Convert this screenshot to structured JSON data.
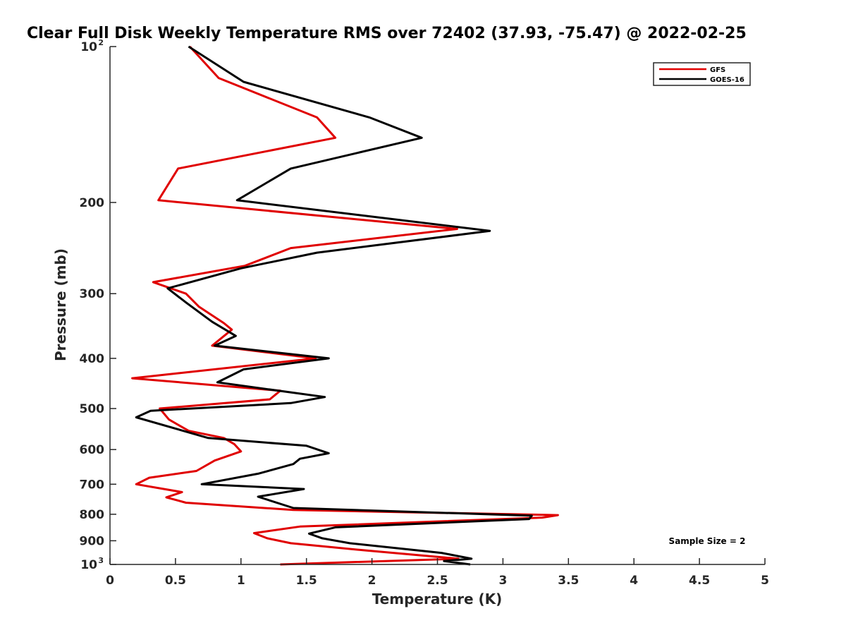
{
  "chart_data": {
    "type": "line",
    "title": "Clear Full Disk Weekly Temperature RMS over 72402 (37.93, -75.47) @ 2022-02-25",
    "xlabel": "Temperature (K)",
    "ylabel": "Pressure (mb)",
    "xlim": [
      0,
      5
    ],
    "ylim": [
      100,
      1000
    ],
    "yscale": "log",
    "yaxis_reversed": true,
    "xticks": [
      0,
      0.5,
      1,
      1.5,
      2,
      2.5,
      3,
      3.5,
      4,
      4.5,
      5
    ],
    "xtick_labels": [
      "0",
      "0.5",
      "1",
      "1.5",
      "2",
      "2.5",
      "3",
      "3.5",
      "4",
      "4.5",
      "5"
    ],
    "yticks": [
      {
        "value": 100,
        "base": "10",
        "exp": "2"
      },
      {
        "value": 200,
        "label": "200"
      },
      {
        "value": 300,
        "label": "300"
      },
      {
        "value": 400,
        "label": "400"
      },
      {
        "value": 500,
        "label": "500"
      },
      {
        "value": 600,
        "label": "600"
      },
      {
        "value": 700,
        "label": "700"
      },
      {
        "value": 800,
        "label": "800"
      },
      {
        "value": 900,
        "label": "900"
      },
      {
        "value": 1000,
        "base": "10",
        "exp": "3"
      }
    ],
    "grid": false,
    "legend_position": "top-right",
    "annotation": "Sample Size = 2",
    "series": [
      {
        "name": "GFS",
        "color": "#e00000",
        "points": [
          [
            0.61,
            100
          ],
          [
            0.83,
            115
          ],
          [
            1.58,
            137
          ],
          [
            1.72,
            150
          ],
          [
            0.52,
            172
          ],
          [
            0.37,
            198
          ],
          [
            2.65,
            225
          ],
          [
            1.38,
            245
          ],
          [
            1.03,
            265
          ],
          [
            0.33,
            285
          ],
          [
            0.58,
            300
          ],
          [
            0.68,
            318
          ],
          [
            0.87,
            342
          ],
          [
            0.93,
            352
          ],
          [
            0.78,
            378
          ],
          [
            1.57,
            400
          ],
          [
            0.17,
            437
          ],
          [
            1.3,
            462
          ],
          [
            1.22,
            480
          ],
          [
            0.38,
            500
          ],
          [
            0.45,
            525
          ],
          [
            0.6,
            552
          ],
          [
            0.87,
            570
          ],
          [
            0.95,
            586
          ],
          [
            1.0,
            605
          ],
          [
            0.8,
            630
          ],
          [
            0.66,
            660
          ],
          [
            0.3,
            680
          ],
          [
            0.2,
            700
          ],
          [
            0.55,
            725
          ],
          [
            0.43,
            742
          ],
          [
            0.58,
            760
          ],
          [
            1.4,
            785
          ],
          [
            3.42,
            803
          ],
          [
            3.3,
            812
          ],
          [
            1.45,
            845
          ],
          [
            1.1,
            870
          ],
          [
            1.2,
            890
          ],
          [
            1.38,
            910
          ],
          [
            1.96,
            940
          ],
          [
            2.66,
            975
          ],
          [
            1.3,
            1000
          ]
        ]
      },
      {
        "name": "GOES-16",
        "color": "#000000",
        "points": [
          [
            0.6,
            100
          ],
          [
            1.02,
            117
          ],
          [
            1.98,
            137
          ],
          [
            2.38,
            150
          ],
          [
            1.38,
            172
          ],
          [
            0.97,
            198
          ],
          [
            2.9,
            227
          ],
          [
            1.58,
            250
          ],
          [
            1.0,
            268
          ],
          [
            0.44,
            293
          ],
          [
            0.58,
            312
          ],
          [
            0.78,
            340
          ],
          [
            0.96,
            362
          ],
          [
            0.8,
            378
          ],
          [
            1.67,
            400
          ],
          [
            1.02,
            420
          ],
          [
            0.82,
            445
          ],
          [
            1.64,
            475
          ],
          [
            1.38,
            488
          ],
          [
            0.31,
            505
          ],
          [
            0.2,
            520
          ],
          [
            0.75,
            570
          ],
          [
            1.5,
            590
          ],
          [
            1.67,
            610
          ],
          [
            1.45,
            625
          ],
          [
            1.4,
            640
          ],
          [
            1.13,
            668
          ],
          [
            0.7,
            700
          ],
          [
            1.48,
            715
          ],
          [
            1.13,
            740
          ],
          [
            1.4,
            778
          ],
          [
            3.22,
            805
          ],
          [
            3.2,
            817
          ],
          [
            1.72,
            848
          ],
          [
            1.52,
            872
          ],
          [
            1.62,
            890
          ],
          [
            1.83,
            910
          ],
          [
            2.53,
            950
          ],
          [
            2.76,
            975
          ],
          [
            2.55,
            985
          ],
          [
            2.75,
            1000
          ]
        ]
      }
    ]
  }
}
